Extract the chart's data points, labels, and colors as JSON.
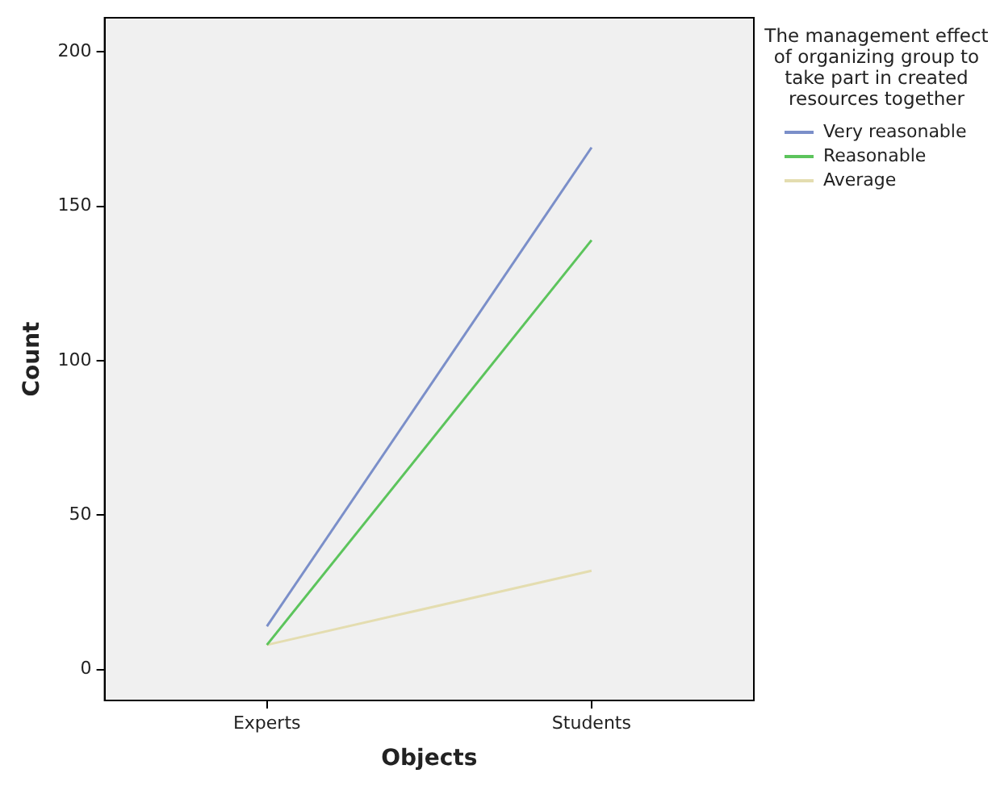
{
  "chart_data": {
    "type": "line",
    "xlabel": "Objects",
    "ylabel": "Count",
    "legend_title": "The management effect of organizing group to take part in created resources together",
    "categories": [
      "Experts",
      "Students"
    ],
    "series": [
      {
        "name": "Very reasonable",
        "color": "#7b8fc9",
        "values": [
          14,
          169
        ]
      },
      {
        "name": "Reasonable",
        "color": "#5cc45c",
        "values": [
          8,
          139
        ]
      },
      {
        "name": "Average",
        "color": "#e4ddb0",
        "values": [
          8,
          32
        ]
      }
    ],
    "ylim": [
      -10,
      211
    ],
    "yticks": [
      0,
      50,
      100,
      150,
      200
    ],
    "grid": false,
    "legend": "right",
    "marker": "none",
    "line_style": "solid"
  }
}
